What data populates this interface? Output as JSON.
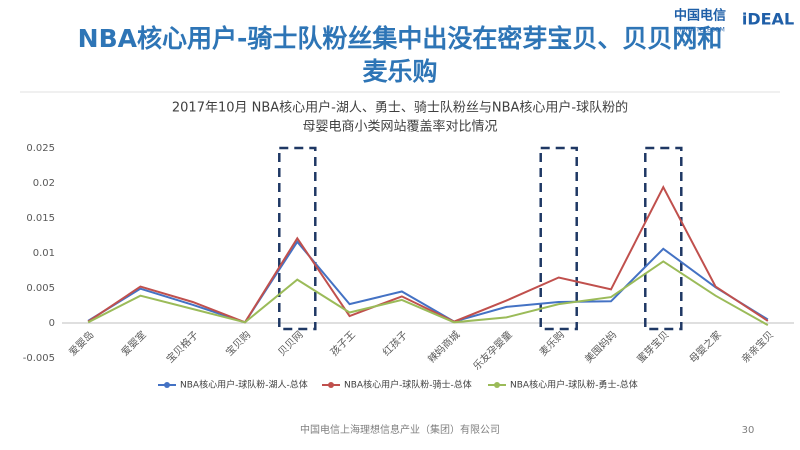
{
  "slide": {
    "title_lines": [
      "NBA核心用户-骑士队粉丝集中出没在密芽宝贝、贝贝网和",
      "麦乐购"
    ],
    "logo_telecom": "中国电信",
    "logo_telecom_en": "CHINA TELECOM",
    "logo_ideal": "iDEAL",
    "footer": "中国电信上海理想信息产业（集团）有限公司",
    "page_number": "30"
  },
  "chart_data": {
    "type": "line",
    "title_lines": [
      "2017年10月 NBA核心用户-湖人、勇士、骑士队粉丝与NBA核心用户-球队粉的",
      "母婴电商小类网站覆盖率对比情况"
    ],
    "categories": [
      "爱婴岛",
      "爱婴室",
      "宝贝格子",
      "宝贝购",
      "贝贝网",
      "孩子王",
      "红孩子",
      "辣妈商城",
      "乐友孕婴童",
      "麦乐购",
      "美囤妈妈",
      "蜜芽宝贝",
      "母婴之家",
      "亲亲宝贝"
    ],
    "series": [
      {
        "name": "NBA核心用户-球队粉-湖人-总体",
        "color": "#4472c4",
        "values": [
          0.0003,
          0.0049,
          0.0026,
          0.0001,
          0.0116,
          0.0027,
          0.0045,
          0.0002,
          0.0023,
          0.003,
          0.0031,
          0.0106,
          0.0051,
          0.0005
        ]
      },
      {
        "name": "NBA核心用户-球队粉-骑士-总体",
        "color": "#c0504d",
        "values": [
          0.0002,
          0.0052,
          0.003,
          0.0001,
          0.0121,
          0.001,
          0.0038,
          0.0002,
          0.0032,
          0.0065,
          0.0048,
          0.0194,
          0.0052,
          0.0003
        ]
      },
      {
        "name": "NBA核心用户-球队粉-勇士-总体",
        "color": "#9bbb59",
        "values": [
          0.0001,
          0.0039,
          0.002,
          0.0001,
          0.0062,
          0.0015,
          0.0033,
          0.0001,
          0.0008,
          0.0027,
          0.0037,
          0.0088,
          0.0039,
          -0.0003
        ]
      }
    ],
    "ylim": [
      -0.005,
      0.025
    ],
    "yticks": [
      -0.005,
      0,
      0.005,
      0.01,
      0.015,
      0.02,
      0.025
    ],
    "grid": false
  }
}
